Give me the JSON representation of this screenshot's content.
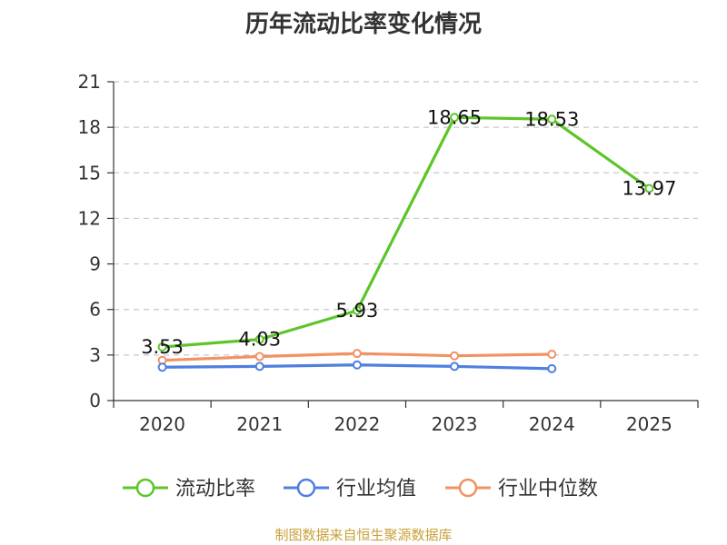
{
  "chart_data": {
    "type": "line",
    "title": "历年流动比率变化情况",
    "categories": [
      "2020",
      "2021",
      "2022",
      "2023",
      "2024",
      "2025"
    ],
    "ylim": [
      0,
      21
    ],
    "yticks": [
      0,
      3,
      6,
      9,
      12,
      15,
      18,
      21
    ],
    "grid": true,
    "legend_position": "bottom",
    "series": [
      {
        "name": "流动比率",
        "color": "#5cc529",
        "values": [
          3.53,
          4.03,
          5.93,
          18.65,
          18.53,
          13.97
        ],
        "labels": [
          "3.53",
          "4.03",
          "5.93",
          "18.65",
          "18.53",
          "13.97"
        ]
      },
      {
        "name": "行业均值",
        "color": "#4f7fdf",
        "values": [
          2.2,
          2.25,
          2.35,
          2.25,
          2.1,
          null
        ]
      },
      {
        "name": "行业中位数",
        "color": "#f29263",
        "values": [
          2.65,
          2.9,
          3.1,
          2.95,
          3.05,
          null
        ]
      }
    ]
  },
  "source": "制图数据来自恒生聚源数据库"
}
